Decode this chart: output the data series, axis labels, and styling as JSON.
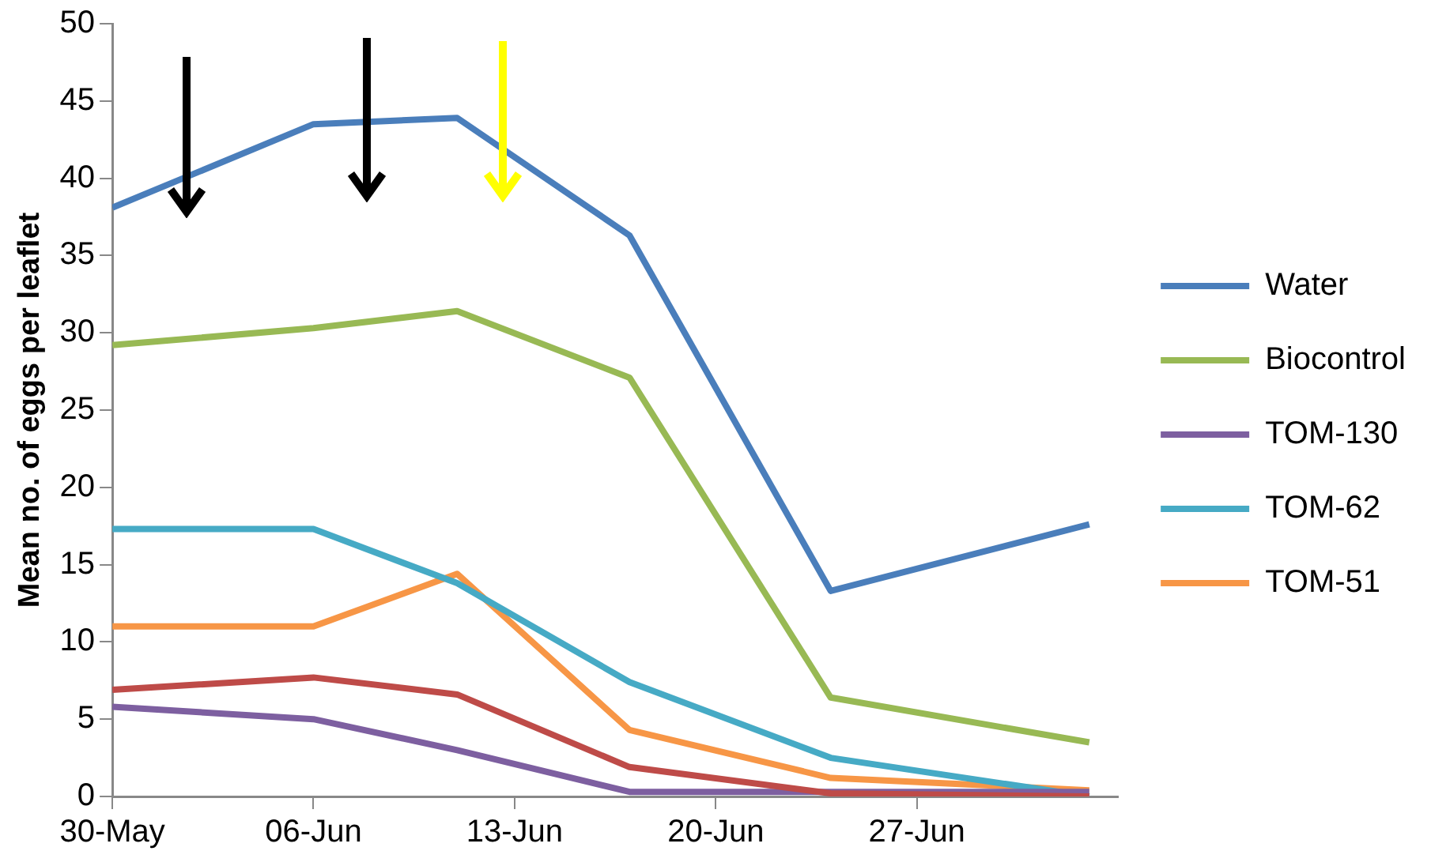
{
  "chart_data": {
    "type": "line",
    "ylabel": "Mean no. of eggs per leaflet",
    "x": [
      "--05-30",
      "--06-06",
      "--06-11",
      "--06-17",
      "--06-24",
      "--07-03"
    ],
    "series": [
      {
        "name": "Water",
        "color": "#4a7ebb",
        "values": [
          38.1,
          43.5,
          43.9,
          36.3,
          13.3,
          17.6
        ]
      },
      {
        "color": "#be4b48",
        "values": [
          6.9,
          7.7,
          6.6,
          1.9,
          0.2,
          0
        ]
      },
      {
        "name": "Biocontrol",
        "color": "#98b954",
        "values": [
          29.2,
          30.3,
          31.4,
          27.1,
          6.4,
          3.5
        ]
      },
      {
        "name": "TOM-130",
        "color": "#7d5fa0",
        "values": [
          5.8,
          5.0,
          3.0,
          0.3,
          0.3,
          0.3
        ]
      },
      {
        "name": "TOM-62",
        "color": "#46aac5",
        "values": [
          17.3,
          17.3,
          13.8,
          7.4,
          2.5,
          0
        ]
      },
      {
        "name": "TOM-51",
        "color": "#f79646",
        "values": [
          11,
          11,
          14.4,
          4.3,
          1.2,
          0.4
        ]
      }
    ],
    "xlim": [
      "--05-30",
      "--07-04"
    ],
    "xticks": [
      {
        "value": "--05-30",
        "label": "30-May"
      },
      {
        "value": "--06-06",
        "label": "06-Jun"
      },
      {
        "value": "--06-13",
        "label": "13-Jun"
      },
      {
        "value": "--06-20",
        "label": "20-Jun"
      },
      {
        "value": "--06-27",
        "label": "27-Jun"
      }
    ],
    "ylim": [
      0,
      50
    ],
    "yticks": [
      0,
      5,
      10,
      15,
      20,
      25,
      30,
      35,
      40,
      45,
      50
    ],
    "grid": false,
    "legend": "right",
    "marker": "none",
    "line_style": "solid"
  }
}
